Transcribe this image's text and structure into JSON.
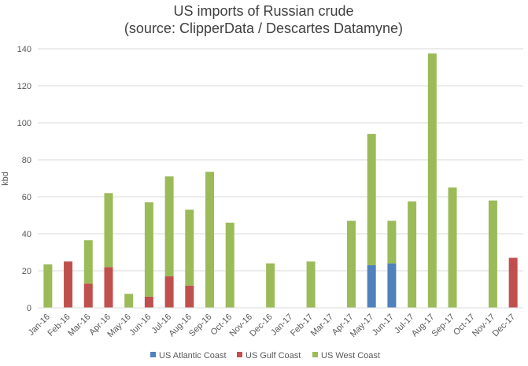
{
  "chart_data": {
    "type": "bar",
    "stacked": true,
    "title_line1": "US imports of Russian crude",
    "title_line2": "(source: ClipperData / Descartes Datamyne)",
    "xlabel": "",
    "ylabel": "kbd",
    "ylim": [
      0,
      140
    ],
    "yticks": [
      0,
      20,
      40,
      60,
      80,
      100,
      120,
      140
    ],
    "grid": true,
    "legend_position": "bottom",
    "categories": [
      "Jan-16",
      "Feb-16",
      "Mar-16",
      "Apr-16",
      "May-16",
      "Jun-16",
      "Jul-16",
      "Aug-16",
      "Sep-16",
      "Oct-16",
      "Nov-16",
      "Dec-16",
      "Jan-17",
      "Feb-17",
      "Mar-17",
      "Apr-17",
      "May-17",
      "Jun-17",
      "Jul-17",
      "Aug-17",
      "Sep-17",
      "Oct-17",
      "Nov-17",
      "Dec-17"
    ],
    "series": [
      {
        "name": "US Atlantic Coast",
        "color": "#4f81bd",
        "values": [
          0,
          0,
          0,
          0,
          0,
          0,
          0,
          0,
          0,
          0,
          0,
          0,
          0,
          0,
          0,
          0,
          23,
          24,
          0,
          0,
          0,
          0,
          0,
          0
        ]
      },
      {
        "name": "US Gulf Coast",
        "color": "#c0504d",
        "values": [
          0,
          25,
          13,
          22,
          0,
          6,
          17,
          12,
          0,
          0,
          0,
          0,
          0,
          0,
          0,
          0,
          0,
          0,
          0,
          0,
          0,
          0,
          0,
          27
        ]
      },
      {
        "name": "US West Coast",
        "color": "#9bbb59",
        "values": [
          23.5,
          0,
          23.5,
          40,
          7.5,
          51,
          54,
          41,
          73.5,
          46,
          0,
          24,
          0,
          25,
          0,
          47,
          71,
          23,
          57.5,
          137.5,
          65,
          0,
          58,
          0
        ]
      }
    ]
  }
}
